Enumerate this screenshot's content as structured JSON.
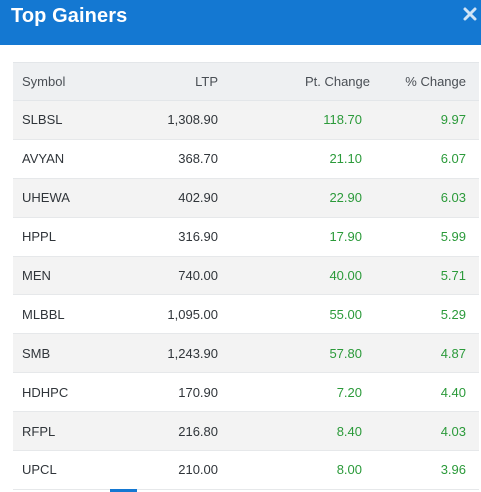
{
  "header": {
    "title": "Top Gainers",
    "close_icon": "close-icon",
    "color": "#1478d2"
  },
  "table": {
    "columns": {
      "symbol": "Symbol",
      "ltp": "LTP",
      "pt_change": "Pt. Change",
      "pct_change": "% Change"
    },
    "rows": [
      {
        "symbol": "SLBSL",
        "ltp": "1,308.90",
        "pt_change": "118.70",
        "pct_change": "9.97"
      },
      {
        "symbol": "AVYAN",
        "ltp": "368.70",
        "pt_change": "21.10",
        "pct_change": "6.07"
      },
      {
        "symbol": "UHEWA",
        "ltp": "402.90",
        "pt_change": "22.90",
        "pct_change": "6.03"
      },
      {
        "symbol": "HPPL",
        "ltp": "316.90",
        "pt_change": "17.90",
        "pct_change": "5.99"
      },
      {
        "symbol": "MEN",
        "ltp": "740.00",
        "pt_change": "40.00",
        "pct_change": "5.71"
      },
      {
        "symbol": "MLBBL",
        "ltp": "1,095.00",
        "pt_change": "55.00",
        "pct_change": "5.29"
      },
      {
        "symbol": "SMB",
        "ltp": "1,243.90",
        "pt_change": "57.80",
        "pct_change": "4.87"
      },
      {
        "symbol": "HDHPC",
        "ltp": "170.90",
        "pt_change": "7.20",
        "pct_change": "4.40"
      },
      {
        "symbol": "RFPL",
        "ltp": "216.80",
        "pt_change": "8.40",
        "pct_change": "4.03"
      },
      {
        "symbol": "UPCL",
        "ltp": "210.00",
        "pt_change": "8.00",
        "pct_change": "3.96"
      }
    ],
    "gain_color": "#2b9a3a"
  }
}
